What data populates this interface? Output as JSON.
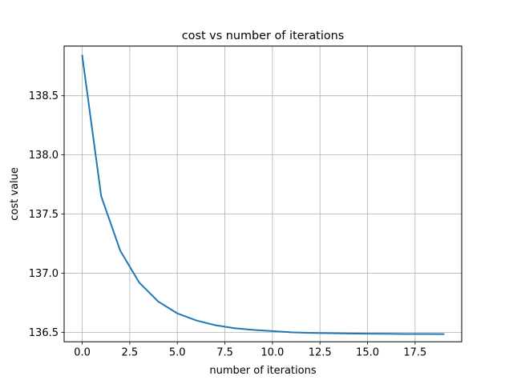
{
  "chart_data": {
    "type": "line",
    "title": "cost vs number of iterations",
    "xlabel": "number of iterations",
    "ylabel": "cost value",
    "xlim": [
      -0.95,
      19.95
    ],
    "ylim": [
      136.42,
      138.92
    ],
    "xticks": [
      0.0,
      2.5,
      5.0,
      7.5,
      10.0,
      12.5,
      15.0,
      17.5
    ],
    "xtick_labels": [
      "0.0",
      "2.5",
      "5.0",
      "7.5",
      "10.0",
      "12.5",
      "15.0",
      "17.5"
    ],
    "yticks": [
      136.5,
      137.0,
      137.5,
      138.0,
      138.5
    ],
    "ytick_labels": [
      "136.5",
      "137.0",
      "137.5",
      "138.0",
      "138.5"
    ],
    "grid": true,
    "series": [
      {
        "color": "#1f77b4",
        "x": [
          0,
          1,
          2,
          3,
          4,
          5,
          6,
          7,
          8,
          9,
          10,
          11,
          12,
          13,
          14,
          15,
          16,
          17,
          18,
          19
        ],
        "y": [
          138.84,
          137.65,
          137.19,
          136.92,
          136.76,
          136.66,
          136.6,
          136.56,
          136.535,
          136.52,
          136.51,
          136.5,
          136.495,
          136.492,
          136.49,
          136.488,
          136.487,
          136.486,
          136.486,
          136.485
        ]
      }
    ]
  }
}
